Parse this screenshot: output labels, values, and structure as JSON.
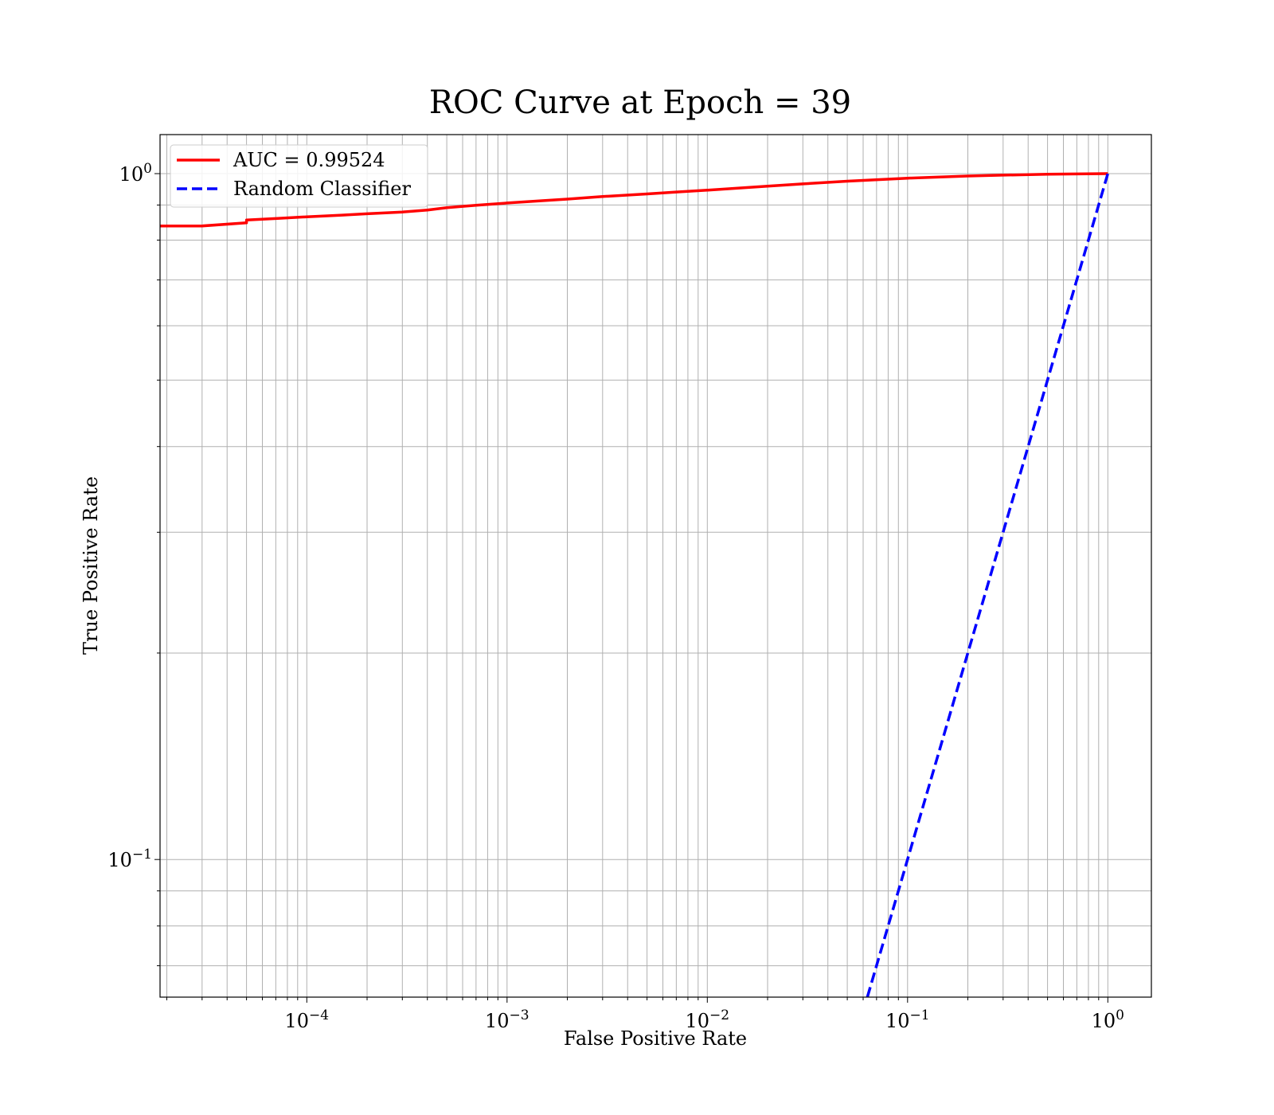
{
  "chart_data": {
    "type": "line",
    "title": "ROC Curve at Epoch = 39",
    "xlabel": "False Positive Rate",
    "ylabel": "True Positive Rate",
    "xscale": "log",
    "yscale": "log",
    "xlim": [
      1.85e-05,
      1.65
    ],
    "ylim": [
      0.063,
      1.14
    ],
    "grid": "both major and minor",
    "legend_position": "upper-left",
    "x_ticks": [
      {
        "base": "10",
        "exp": "−4",
        "value": 0.0001
      },
      {
        "base": "10",
        "exp": "−3",
        "value": 0.001
      },
      {
        "base": "10",
        "exp": "−2",
        "value": 0.01
      },
      {
        "base": "10",
        "exp": "−1",
        "value": 0.1
      },
      {
        "base": "10",
        "exp": "0",
        "value": 1
      }
    ],
    "y_ticks": [
      {
        "base": "10",
        "exp": "−1",
        "value": 0.1
      },
      {
        "base": "10",
        "exp": "0",
        "value": 1
      }
    ],
    "series": [
      {
        "name": "AUC = 0.99524",
        "color": "#ff0000",
        "style": "solid",
        "x": [
          1.85e-05,
          3e-05,
          5e-05,
          5e-05,
          7e-05,
          0.0001,
          0.00015,
          0.0002,
          0.0003,
          0.0004,
          0.0005,
          0.0007,
          0.001,
          0.0015,
          0.002,
          0.003,
          0.005,
          0.007,
          0.01,
          0.02,
          0.03,
          0.05,
          0.1,
          0.2,
          0.3,
          0.5,
          0.7,
          1
        ],
        "y": [
          0.839,
          0.839,
          0.848,
          0.856,
          0.86,
          0.865,
          0.87,
          0.874,
          0.879,
          0.885,
          0.892,
          0.899,
          0.906,
          0.913,
          0.918,
          0.926,
          0.934,
          0.94,
          0.946,
          0.959,
          0.966,
          0.975,
          0.985,
          0.992,
          0.995,
          0.998,
          0.999,
          1.0
        ]
      },
      {
        "name": "Random Classifier",
        "color": "#0000ff",
        "style": "dashed",
        "x": [
          0.063,
          1
        ],
        "y": [
          0.063,
          1
        ]
      }
    ]
  }
}
